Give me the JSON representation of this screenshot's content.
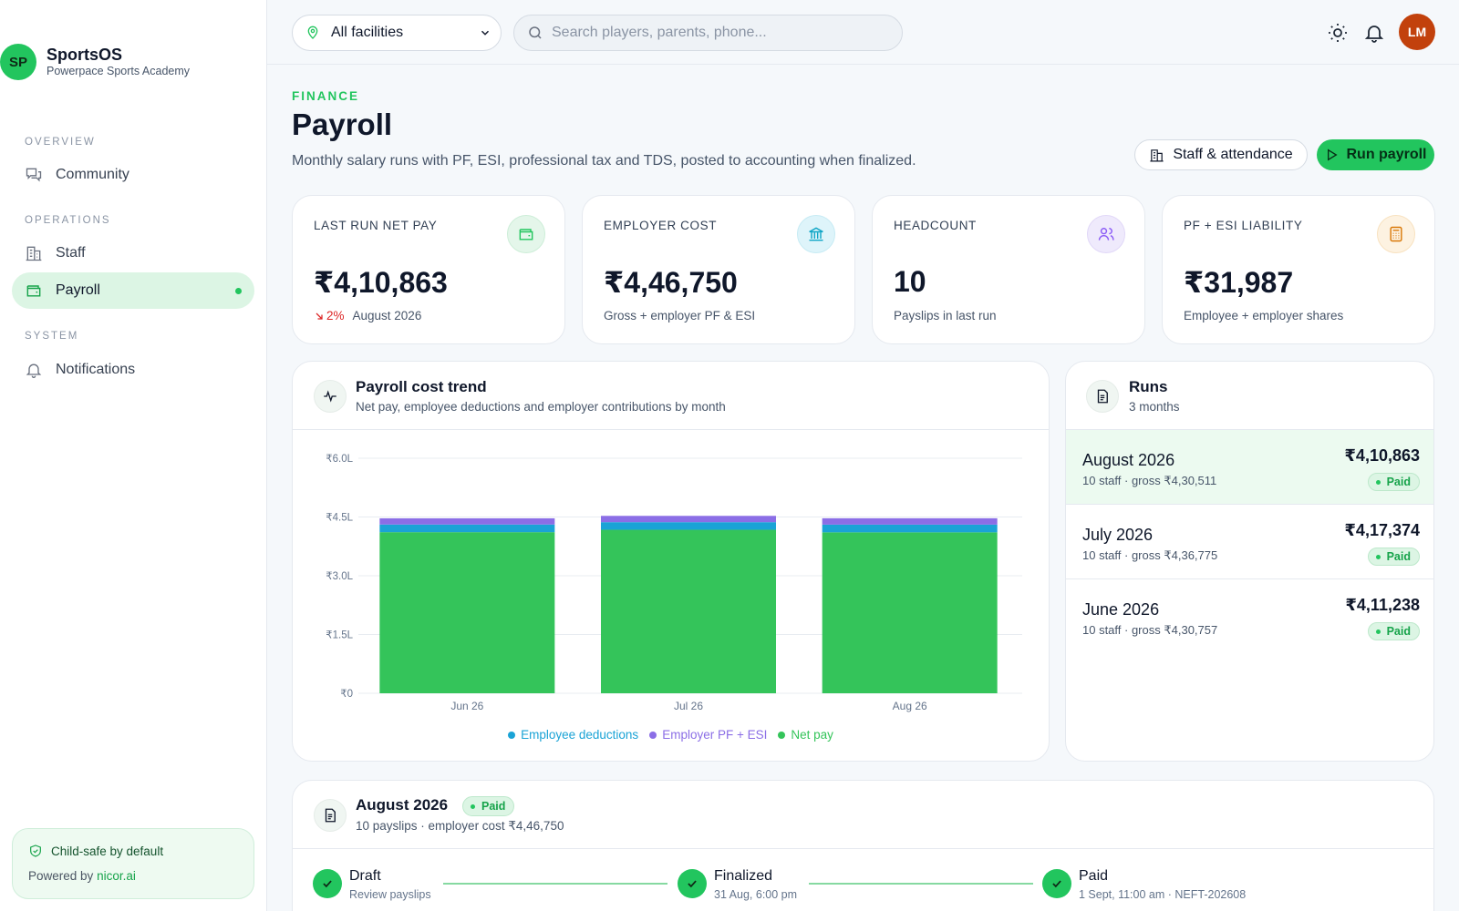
{
  "brand": {
    "initials": "SP",
    "name": "SportsOS",
    "subtitle": "Powerpace Sports Academy"
  },
  "nav": {
    "sections": [
      {
        "title": "OVERVIEW",
        "items": [
          {
            "label": "Community",
            "icon": "chat-icon"
          }
        ]
      },
      {
        "title": "OPERATIONS",
        "items": [
          {
            "label": "Staff",
            "icon": "building-icon"
          },
          {
            "label": "Payroll",
            "icon": "wallet-icon",
            "active": true
          }
        ]
      },
      {
        "title": "SYSTEM",
        "items": [
          {
            "label": "Notifications",
            "icon": "bell-icon"
          }
        ]
      }
    ]
  },
  "footer": {
    "title": "Child-safe by default",
    "powered_prefix": "Powered by",
    "powered_link": "nicor.ai"
  },
  "topbar": {
    "facility": "All facilities",
    "search_placeholder": "Search players, parents, phone...",
    "avatar_initials": "LM"
  },
  "header": {
    "eyebrow": "FINANCE",
    "title": "Payroll",
    "description": "Monthly salary runs with PF, ESI, professional tax and TDS, posted to accounting when finalized.",
    "btn_staff": "Staff & attendance",
    "btn_run": "Run payroll"
  },
  "stats": [
    {
      "label": "LAST RUN NET PAY",
      "value": "₹4,10,863",
      "delta": "2%",
      "sub": "August 2026",
      "icon": "wallet-icon",
      "color": "#22c55e"
    },
    {
      "label": "EMPLOYER COST",
      "value": "₹4,46,750",
      "sub": "Gross + employer PF & ESI",
      "icon": "bank-icon",
      "color": "#0ea5c6"
    },
    {
      "label": "HEADCOUNT",
      "value": "10",
      "sub": "Payslips in last run",
      "icon": "users-icon",
      "color": "#8b5cf6"
    },
    {
      "label": "PF + ESI LIABILITY",
      "value": "₹31,987",
      "sub": "Employee + employer shares",
      "icon": "calculator-icon",
      "color": "#d97706"
    }
  ],
  "trend": {
    "title": "Payroll cost trend",
    "subtitle": "Net pay, employee deductions and employer contributions by month"
  },
  "chart_data": {
    "type": "bar",
    "stacked": true,
    "categories": [
      "Jun 26",
      "Jul 26",
      "Aug 26"
    ],
    "series": [
      {
        "name": "Net pay",
        "color": "#34c45a",
        "values": [
          411238,
          417374,
          410863
        ]
      },
      {
        "name": "Employee deductions",
        "color": "#1aa3d6",
        "values": [
          19519,
          19401,
          19648
        ]
      },
      {
        "name": "Employer PF + ESI",
        "color": "#8b6ee6",
        "values": [
          15850,
          16100,
          16239
        ]
      }
    ],
    "legend_order": [
      "Employee deductions",
      "Employer PF + ESI",
      "Net pay"
    ],
    "y_ticks": [
      "₹0",
      "₹1.5L",
      "₹3.0L",
      "₹4.5L",
      "₹6.0L"
    ],
    "ylim": [
      0,
      600000
    ],
    "grid": true,
    "legend_position": "bottom"
  },
  "runs": {
    "title": "Runs",
    "subtitle": "3 months",
    "items": [
      {
        "month": "August 2026",
        "meta": "10 staff · gross ₹4,30,511",
        "amount": "₹4,10,863",
        "status": "Paid",
        "active": true
      },
      {
        "month": "July 2026",
        "meta": "10 staff · gross ₹4,36,775",
        "amount": "₹4,17,374",
        "status": "Paid"
      },
      {
        "month": "June 2026",
        "meta": "10 staff · gross ₹4,30,757",
        "amount": "₹4,11,238",
        "status": "Paid"
      }
    ]
  },
  "detail": {
    "title": "August 2026",
    "status": "Paid",
    "subtitle": "10 payslips · employer cost ₹4,46,750",
    "steps": [
      {
        "label": "Draft",
        "sub": "Review payslips"
      },
      {
        "label": "Finalized",
        "sub": "31 Aug, 6:00 pm"
      },
      {
        "label": "Paid",
        "sub": "1 Sept, 11:00 am · NEFT-202608"
      }
    ]
  }
}
